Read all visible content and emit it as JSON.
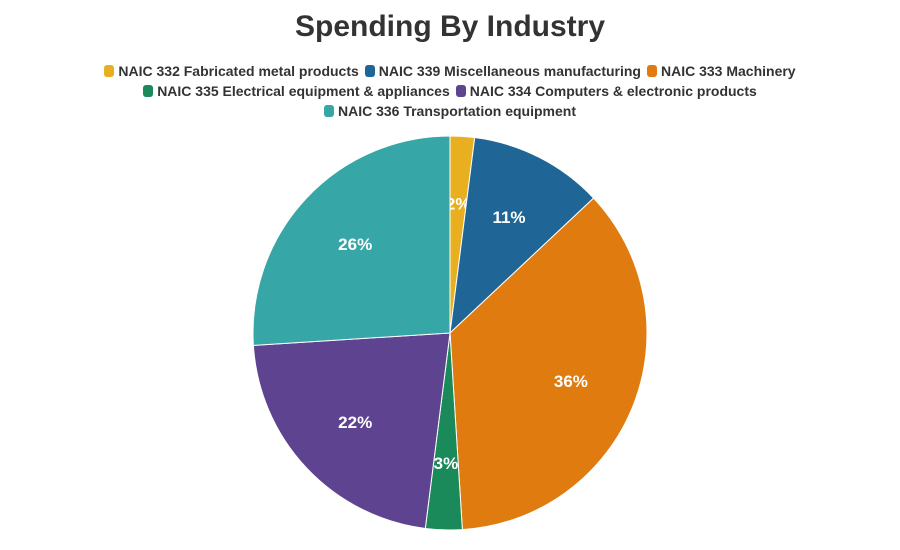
{
  "chart_data": {
    "type": "pie",
    "title": "Spending By Industry",
    "start_angle_deg": 0,
    "direction": "clockwise",
    "legend_placement": "top",
    "slices": [
      {
        "label": "NAIC 332 Fabricated metal products",
        "value": 2,
        "display": "2%",
        "color": "#E8B020"
      },
      {
        "label": "NAIC 339 Miscellaneous manufacturing",
        "value": 11,
        "display": "11%",
        "color": "#1F6696"
      },
      {
        "label": "NAIC 333 Machinery",
        "value": 36,
        "display": "36%",
        "color": "#E07B10"
      },
      {
        "label": "NAIC 335 Electrical equipment & appliances",
        "value": 3,
        "display": "3%",
        "color": "#1A8A5A"
      },
      {
        "label": "NAIC 334 Computers & electronic products",
        "value": 22,
        "display": "22%",
        "color": "#5E4390"
      },
      {
        "label": "NAIC 336 Transportation equipment",
        "value": 26,
        "display": "26%",
        "color": "#37A6A6"
      }
    ]
  }
}
